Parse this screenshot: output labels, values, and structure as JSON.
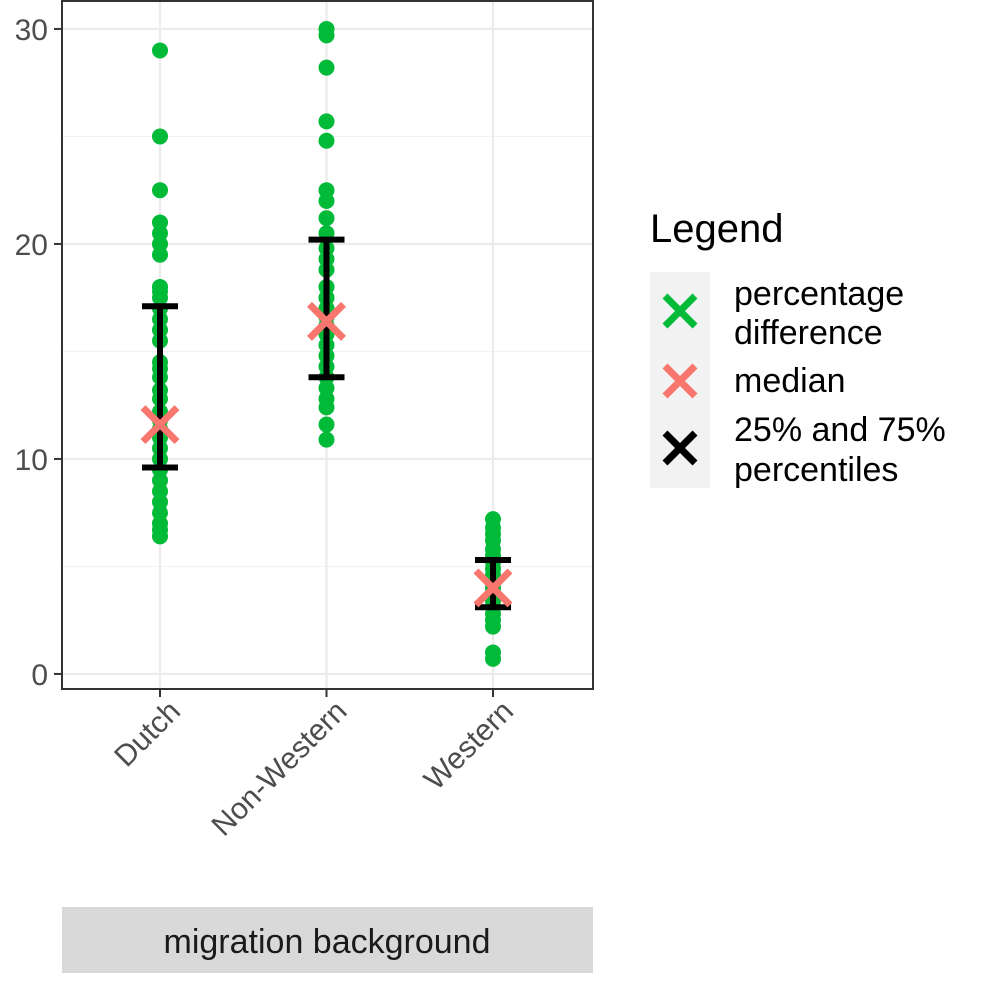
{
  "chart_data": {
    "type": "scatter",
    "strip_label": "migration background",
    "categories": [
      "Dutch",
      "Non-Western",
      "Western"
    ],
    "ylim": [
      -0.7,
      31.3
    ],
    "yticks": [
      0,
      10,
      20,
      30
    ],
    "y_minor_gridlines": [
      5,
      15,
      25
    ],
    "grid": true,
    "legend_position": "right",
    "colors": {
      "points": "#00ba38",
      "median": "#f8766d",
      "percentiles": "#000000"
    },
    "points": [
      {
        "category": "Dutch",
        "values": [
          29.0,
          25.0,
          22.5,
          21.0,
          20.5,
          20.0,
          19.5,
          18.0,
          17.8,
          17.5,
          17.0,
          16.5,
          16.0,
          15.5,
          14.5,
          14.2,
          13.8,
          13.2,
          12.8,
          12.2,
          11.8,
          11.4,
          11.0,
          10.5,
          10.0,
          9.5,
          9.0,
          8.5,
          8.0,
          7.5,
          7.0,
          6.7,
          6.4
        ]
      },
      {
        "category": "Non-Western",
        "values": [
          30.0,
          29.7,
          28.2,
          25.7,
          24.8,
          22.5,
          22.0,
          21.2,
          20.5,
          19.8,
          19.3,
          18.8,
          18.0,
          17.5,
          17.0,
          16.6,
          16.2,
          15.8,
          15.3,
          14.8,
          14.3,
          13.8,
          13.3,
          12.8,
          12.4,
          11.6,
          10.9
        ]
      },
      {
        "category": "Western",
        "values": [
          7.2,
          6.8,
          6.5,
          6.2,
          5.8,
          5.5,
          5.2,
          4.9,
          4.6,
          4.3,
          4.0,
          3.7,
          3.4,
          3.1,
          2.8,
          2.5,
          2.2,
          1.0,
          0.7
        ]
      }
    ],
    "median": [
      {
        "category": "Dutch",
        "value": 11.6
      },
      {
        "category": "Non-Western",
        "value": 16.4
      },
      {
        "category": "Western",
        "value": 4.0
      }
    ],
    "percentiles": [
      {
        "category": "Dutch",
        "p25": 9.6,
        "p75": 17.1
      },
      {
        "category": "Non-Western",
        "p25": 13.8,
        "p75": 20.2
      },
      {
        "category": "Western",
        "p25": 3.1,
        "p75": 5.3
      }
    ],
    "legend": {
      "title": "Legend",
      "entries": [
        {
          "lines": [
            "percentage",
            "difference"
          ],
          "color": "#00ba38"
        },
        {
          "lines": [
            "median"
          ],
          "color": "#f8766d"
        },
        {
          "lines": [
            "25% and 75%",
            "percentiles"
          ],
          "color": "#000000"
        }
      ]
    }
  }
}
